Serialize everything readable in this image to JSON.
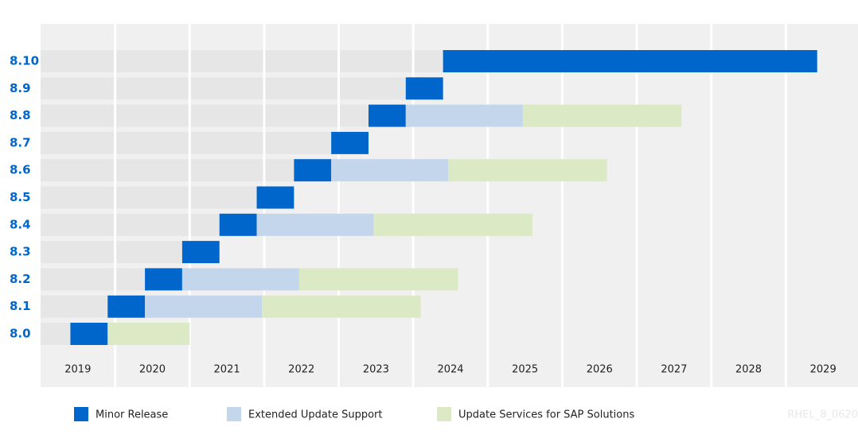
{
  "chart_data": {
    "type": "gantt",
    "categories": [
      "8.10",
      "8.9",
      "8.8",
      "8.7",
      "8.6",
      "8.5",
      "8.4",
      "8.3",
      "8.2",
      "8.1",
      "8.0"
    ],
    "series": [
      {
        "name": "Minor Release",
        "color": "#0066cc",
        "start": [
          2024.4,
          2023.9,
          2023.4,
          2022.9,
          2022.4,
          2021.9,
          2021.4,
          2020.9,
          2020.4,
          2019.9,
          2019.4
        ],
        "end": [
          2029.42,
          2024.4,
          2023.9,
          2023.4,
          2022.9,
          2022.4,
          2021.9,
          2021.4,
          2020.9,
          2020.4,
          2019.9
        ]
      },
      {
        "name": "Extended Update Support",
        "color": "#c3d6ec",
        "start": [
          null,
          null,
          2023.9,
          null,
          2022.9,
          null,
          2021.9,
          null,
          2020.9,
          2020.4,
          null
        ],
        "end": [
          null,
          null,
          2025.47,
          null,
          2024.47,
          null,
          2023.47,
          null,
          2022.47,
          2021.97,
          null
        ]
      },
      {
        "name": "Update Services for SAP Solutions",
        "color": "#dce9c5",
        "start": [
          null,
          null,
          2025.47,
          null,
          2024.47,
          null,
          2023.47,
          null,
          2022.47,
          2021.97,
          2019.9
        ],
        "end": [
          null,
          null,
          2027.6,
          null,
          2026.6,
          null,
          2025.6,
          null,
          2024.6,
          2024.1,
          2021.0
        ]
      }
    ],
    "xlim": [
      2019,
      2030
    ],
    "xticks": [
      2019,
      2020,
      2021,
      2022,
      2023,
      2024,
      2025,
      2026,
      2027,
      2028,
      2029
    ],
    "grid": true,
    "watermark": "RHEL_8_0620"
  }
}
